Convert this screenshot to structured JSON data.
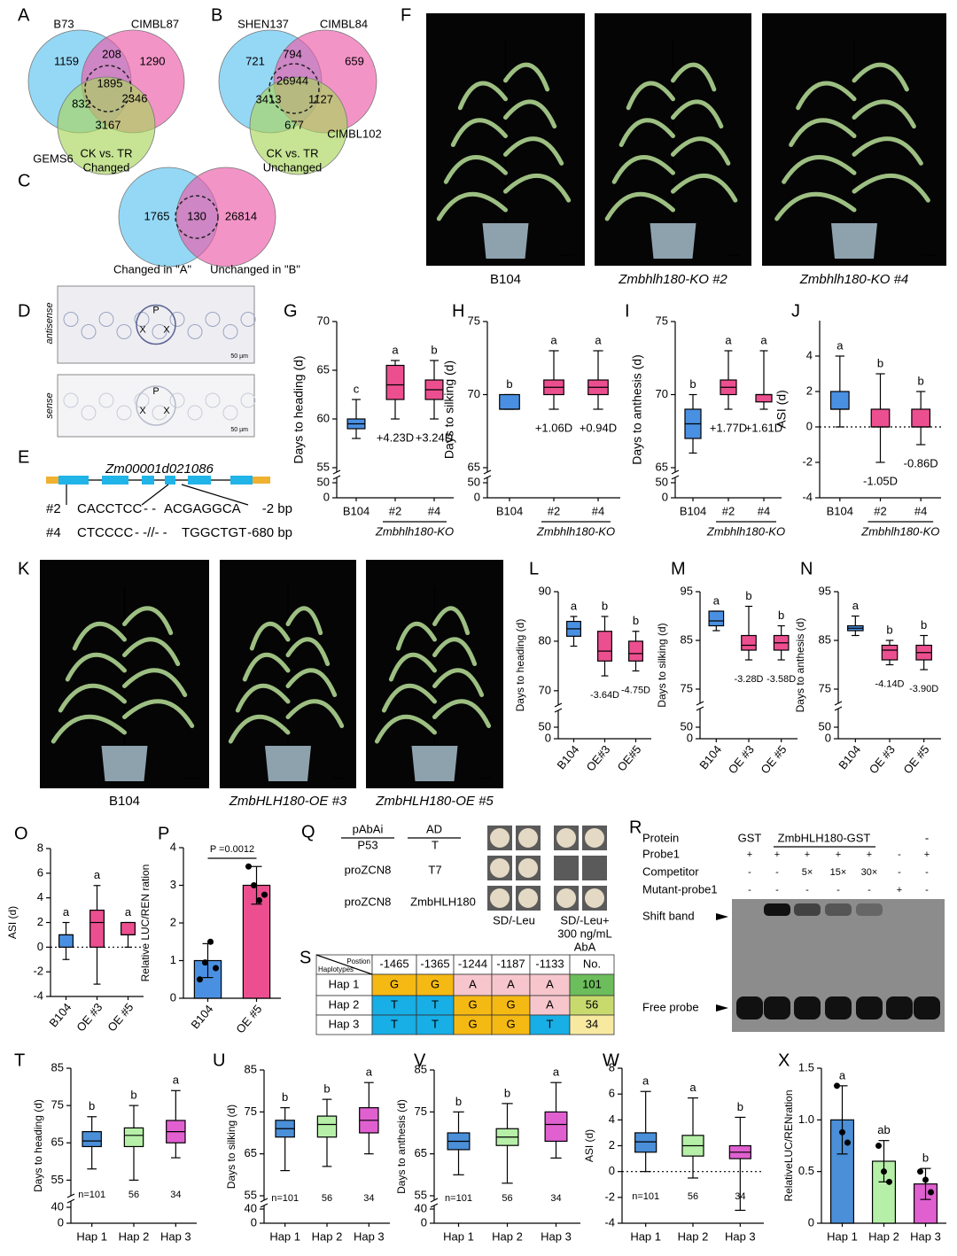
{
  "venns": [
    {
      "label": "A",
      "sets": [
        "B73",
        "CIMBL87",
        "GEMS6"
      ],
      "numbers": [
        "1159",
        "208",
        "1290",
        "832",
        "1895",
        "2346",
        "3167"
      ],
      "caption": [
        "CK vs. TR",
        "Changed"
      ],
      "colors": [
        "#5cc3ef",
        "#ec5aa9",
        "#a9d65c"
      ]
    },
    {
      "label": "B",
      "sets": [
        "SHEN137",
        "CIMBL84",
        "CIMBL102"
      ],
      "numbers": [
        "721",
        "794",
        "659",
        "3413",
        "26944",
        "1127",
        "677"
      ],
      "caption": [
        "CK vs. TR",
        "Unchanged"
      ],
      "colors": [
        "#5cc3ef",
        "#ec5aa9",
        "#a9d65c"
      ]
    },
    {
      "label": "C",
      "sets": [
        "Changed in \"A\"",
        "Unchanged in \"B\""
      ],
      "numbers": [
        "1765",
        "130",
        "26814"
      ],
      "colors": [
        "#5cc3ef",
        "#ec5aa9"
      ]
    }
  ],
  "micrograph": {
    "label": "D",
    "panels": [
      {
        "name": "antisense",
        "marks": [
          "P",
          "X",
          "X"
        ],
        "scale": "50 µm"
      },
      {
        "name": "sense",
        "marks": [
          "P",
          "X",
          "X"
        ],
        "scale": "50 µm"
      }
    ]
  },
  "gene": {
    "label": "E",
    "name": "Zm00001d021086",
    "alleles": [
      {
        "name": "#2",
        "left": "CACCTCC",
        "gap": "- -",
        "right": "ACGAGGCA",
        "change": "-2 bp",
        "color": "#2e9a3a"
      },
      {
        "name": "#4",
        "left": "CTCCCC",
        "gap": "- -//- -",
        "right": "TGGCTGT",
        "change": "-680 bp",
        "color": "#c0278a"
      }
    ]
  },
  "photos": [
    {
      "label": "F",
      "captions": [
        "B104",
        "Zmbhlh180-KO #2",
        "Zmbhlh180-KO #4"
      ]
    },
    {
      "label": "K",
      "captions": [
        "B104",
        "ZmbHLH180-OE #3",
        "ZmbHLH180-OE #5"
      ]
    }
  ],
  "yeast": {
    "label": "Q",
    "headers": [
      "pAbAi",
      "AD"
    ],
    "rows": [
      [
        "P53",
        "T"
      ],
      [
        "proZCN8",
        "T7"
      ],
      [
        "proZCN8",
        "ZmbHLH180"
      ]
    ],
    "media": [
      "SD/-Leu",
      "SD/-Leu+",
      "300 ng/mL",
      "AbA"
    ]
  },
  "emsa": {
    "label": "R",
    "protein": "Protein",
    "proteins": [
      "GST",
      "ZmbHLH180-GST",
      "-"
    ],
    "rows": [
      {
        "name": "Probe1",
        "lanes": [
          "+",
          "+",
          "+",
          "+",
          "+",
          "-",
          "+"
        ]
      },
      {
        "name": "Competitor",
        "lanes": [
          "-",
          "-",
          "5×",
          "15×",
          "30×",
          "-",
          "-"
        ]
      },
      {
        "name": "Mutant-probe1",
        "lanes": [
          "-",
          "-",
          "-",
          "-",
          "-",
          "+",
          "-"
        ]
      }
    ],
    "shift_band": "Shift band",
    "free_probe": "Free probe"
  },
  "table": {
    "label": "S",
    "corner": [
      "Postion",
      "Haplotypes"
    ],
    "columns": [
      "-1465",
      "-1365",
      "-1244",
      "-1187",
      "-1133",
      "No."
    ],
    "rows": [
      {
        "name": "Hap 1",
        "bases": [
          "G",
          "G",
          "A",
          "A",
          "A"
        ],
        "count": 101
      },
      {
        "name": "Hap 2",
        "bases": [
          "T",
          "T",
          "G",
          "G",
          "A"
        ],
        "count": 56
      },
      {
        "name": "Hap 3",
        "bases": [
          "T",
          "T",
          "G",
          "G",
          "T"
        ],
        "count": 34
      }
    ],
    "base_colors": {
      "G": "#f5b914",
      "A": "#f7c6cc",
      "T": "#18aee6"
    },
    "count_colors": [
      "#6cbd5b",
      "#c8da6e",
      "#f7e9a0"
    ]
  },
  "chart_data": [
    {
      "type": "box",
      "label": "G",
      "ylabel": "Days to heading (d)",
      "categories": [
        "B104",
        "#2",
        "#4"
      ],
      "group_label": "Zmbhlh180-KO",
      "ylim": [
        55,
        70
      ],
      "yticks": [
        55,
        60,
        65,
        70
      ],
      "break_ticks": [
        0,
        50
      ],
      "boxes": [
        {
          "color": "#4a90e2",
          "min": 58,
          "q1": 59,
          "median": 59.5,
          "q3": 60,
          "max": 62
        },
        {
          "color": "#ec4f8f",
          "min": 60,
          "q1": 62,
          "median": 63.5,
          "q3": 65.5,
          "max": 66
        },
        {
          "color": "#ec4f8f",
          "min": 60,
          "q1": 62,
          "median": 63,
          "q3": 64,
          "max": 66
        }
      ],
      "letters": [
        "c",
        "a",
        "b"
      ],
      "annotations": [
        null,
        "+4.23D",
        "+3.24D"
      ]
    },
    {
      "type": "box",
      "label": "H",
      "ylabel": "Days to silking (d)",
      "categories": [
        "B104",
        "#2",
        "#4"
      ],
      "group_label": "Zmbhlh180-KO",
      "ylim": [
        65,
        75
      ],
      "yticks": [
        65,
        70,
        75
      ],
      "break_ticks": [
        0,
        50
      ],
      "boxes": [
        {
          "color": "#4a90e2",
          "min": 69,
          "q1": 69,
          "median": 69,
          "q3": 70,
          "max": 70
        },
        {
          "color": "#ec4f8f",
          "min": 69,
          "q1": 70,
          "median": 70.5,
          "q3": 71,
          "max": 73
        },
        {
          "color": "#ec4f8f",
          "min": 69,
          "q1": 70,
          "median": 70.5,
          "q3": 71,
          "max": 73
        }
      ],
      "letters": [
        "b",
        "a",
        "a"
      ],
      "annotations": [
        null,
        "+1.06D",
        "+0.94D"
      ]
    },
    {
      "type": "box",
      "label": "I",
      "ylabel": "Days to anthesis (d)",
      "categories": [
        "B104",
        "#2",
        "#4"
      ],
      "group_label": "Zmbhlh180-KO",
      "ylim": [
        65,
        75
      ],
      "yticks": [
        65,
        70,
        75
      ],
      "break_ticks": [
        0,
        50
      ],
      "boxes": [
        {
          "color": "#4a90e2",
          "min": 66,
          "q1": 67,
          "median": 68,
          "q3": 69,
          "max": 70
        },
        {
          "color": "#ec4f8f",
          "min": 69,
          "q1": 70,
          "median": 70.5,
          "q3": 71,
          "max": 73
        },
        {
          "color": "#ec4f8f",
          "min": 69,
          "q1": 69.5,
          "median": 70,
          "q3": 70,
          "max": 73
        }
      ],
      "letters": [
        "b",
        "a",
        "a"
      ],
      "annotations": [
        null,
        "+1.77D",
        "+1.61D"
      ]
    },
    {
      "type": "box",
      "label": "J",
      "ylabel": "ASI (d)",
      "categories": [
        "B104",
        "#2",
        "#4"
      ],
      "group_label": "Zmbhlh180-KO",
      "ylim": [
        -4,
        6
      ],
      "yticks": [
        -4,
        -2,
        0,
        2,
        4
      ],
      "zero_line": true,
      "boxes": [
        {
          "color": "#4a90e2",
          "min": 0,
          "q1": 1,
          "median": 1,
          "q3": 2,
          "max": 4
        },
        {
          "color": "#ec4f8f",
          "min": -2,
          "q1": 0,
          "median": 0,
          "q3": 1,
          "max": 3
        },
        {
          "color": "#ec4f8f",
          "min": -1,
          "q1": 0,
          "median": 0,
          "q3": 1,
          "max": 2
        }
      ],
      "letters": [
        "a",
        "b",
        "b"
      ],
      "annotations": [
        null,
        "-1.05D",
        "-0.86D"
      ]
    },
    {
      "type": "box",
      "label": "L",
      "ylabel": "Days to heading (d)",
      "categories": [
        "B104",
        "OE#3",
        "OE#5"
      ],
      "rotate_labels": true,
      "ylim": [
        68,
        90
      ],
      "yticks": [
        70,
        80,
        90
      ],
      "break_ticks": [
        0,
        50
      ],
      "boxes": [
        {
          "color": "#4a90e2",
          "min": 79,
          "q1": 81,
          "median": 82.5,
          "q3": 84,
          "max": 85
        },
        {
          "color": "#ec4f8f",
          "min": 73,
          "q1": 76,
          "median": 78,
          "q3": 82,
          "max": 85
        },
        {
          "color": "#ec4f8f",
          "min": 74,
          "q1": 76,
          "median": 77.5,
          "q3": 80,
          "max": 82
        }
      ],
      "letters": [
        "a",
        "b",
        "b"
      ],
      "annotations": [
        null,
        "-3.64D",
        "-4.75D"
      ]
    },
    {
      "type": "box",
      "label": "M",
      "ylabel": "Days to silking (d)",
      "categories": [
        "B104",
        "OE #3",
        "OE #5"
      ],
      "rotate_labels": true,
      "ylim": [
        73,
        95
      ],
      "yticks": [
        75,
        85,
        95
      ],
      "break_ticks": [
        0,
        50
      ],
      "boxes": [
        {
          "color": "#4a90e2",
          "min": 87,
          "q1": 88,
          "median": 89,
          "q3": 91,
          "max": 91
        },
        {
          "color": "#ec4f8f",
          "min": 81,
          "q1": 83,
          "median": 84,
          "q3": 86,
          "max": 92
        },
        {
          "color": "#ec4f8f",
          "min": 81,
          "q1": 83,
          "median": 84.5,
          "q3": 86,
          "max": 88
        }
      ],
      "letters": [
        "a",
        "b",
        "b"
      ],
      "annotations": [
        null,
        "-3.28D",
        "-3.58D"
      ]
    },
    {
      "type": "box",
      "label": "N",
      "ylabel": "Days to anthesis (d)",
      "categories": [
        "B104",
        "OE #3",
        "OE #5"
      ],
      "rotate_labels": true,
      "ylim": [
        73,
        95
      ],
      "yticks": [
        75,
        85,
        95
      ],
      "break_ticks": [
        0,
        50
      ],
      "boxes": [
        {
          "color": "#4a90e2",
          "min": 86,
          "q1": 87,
          "median": 87.5,
          "q3": 88,
          "max": 90
        },
        {
          "color": "#ec4f8f",
          "min": 80,
          "q1": 81,
          "median": 83,
          "q3": 84,
          "max": 85
        },
        {
          "color": "#ec4f8f",
          "min": 79,
          "q1": 81,
          "median": 82.5,
          "q3": 84,
          "max": 86
        }
      ],
      "letters": [
        "a",
        "b",
        "b"
      ],
      "annotations": [
        null,
        "-4.14D",
        "-3.90D"
      ]
    },
    {
      "type": "box",
      "label": "O",
      "ylabel": "ASI (d)",
      "categories": [
        "B104",
        "OE #3",
        "OE #5"
      ],
      "rotate_labels": true,
      "ylim": [
        -4,
        8
      ],
      "yticks": [
        -4,
        -2,
        0,
        2,
        4,
        6,
        8
      ],
      "zero_line": true,
      "boxes": [
        {
          "color": "#4a90e2",
          "min": -1,
          "q1": 0,
          "median": 1,
          "q3": 1,
          "max": 2
        },
        {
          "color": "#ec4f8f",
          "min": -3,
          "q1": 0,
          "median": 2,
          "q3": 3,
          "max": 5
        },
        {
          "color": "#ec4f8f",
          "min": 0,
          "q1": 1,
          "median": 1,
          "q3": 2,
          "max": 2
        }
      ],
      "letters": [
        "a",
        "a",
        "a"
      ]
    },
    {
      "type": "bar",
      "label": "P",
      "ylabel": "Relative LUC/REN ration",
      "categories": [
        "B104",
        "OE #5"
      ],
      "rotate_labels": true,
      "ylim": [
        0,
        4
      ],
      "yticks": [
        0,
        1,
        2,
        3,
        4
      ],
      "values": [
        1.0,
        3.0
      ],
      "errors": [
        0.45,
        0.5
      ],
      "colors": [
        "#4a90e2",
        "#ec4f8f"
      ],
      "points": [
        [
          0.5,
          0.95,
          1.5,
          0.8
        ],
        [
          3.5,
          3.0,
          2.6,
          2.75
        ]
      ],
      "annotation": "P =0.0012"
    },
    {
      "type": "box",
      "label": "T",
      "ylabel": "Days to heading (d)",
      "categories": [
        "Hap 1",
        "Hap 2",
        "Hap 3"
      ],
      "ylim": [
        52,
        85
      ],
      "yticks": [
        55,
        65,
        75,
        85
      ],
      "break_ticks": [
        0,
        40
      ],
      "boxes": [
        {
          "color": "#4a8fd8",
          "min": 58,
          "q1": 64,
          "median": 65.5,
          "q3": 68,
          "max": 72
        },
        {
          "color": "#b6f0a8",
          "min": 55,
          "q1": 64,
          "median": 67,
          "q3": 69,
          "max": 75
        },
        {
          "color": "#e060d0",
          "min": 61,
          "q1": 65,
          "median": 68,
          "q3": 71,
          "max": 79
        }
      ],
      "letters": [
        "b",
        "b",
        "a"
      ],
      "n_labels": [
        "n=101",
        "56",
        "34"
      ]
    },
    {
      "type": "box",
      "label": "U",
      "ylabel": "Days to silking (d)",
      "categories": [
        "Hap 1",
        "Hap 2",
        "Hap 3"
      ],
      "ylim": [
        55,
        85
      ],
      "yticks": [
        55,
        65,
        75,
        85
      ],
      "break_ticks": [
        0,
        40
      ],
      "boxes": [
        {
          "color": "#4a8fd8",
          "min": 61,
          "q1": 69,
          "median": 71,
          "q3": 73,
          "max": 76
        },
        {
          "color": "#b6f0a8",
          "min": 62,
          "q1": 69,
          "median": 72,
          "q3": 74,
          "max": 78
        },
        {
          "color": "#e060d0",
          "min": 65,
          "q1": 70,
          "median": 73,
          "q3": 76,
          "max": 82
        }
      ],
      "letters": [
        "b",
        "b",
        "a"
      ],
      "n_labels": [
        "n=101",
        "56",
        "34"
      ]
    },
    {
      "type": "box",
      "label": "V",
      "ylabel": "Days to anthesis (d)",
      "categories": [
        "Hap 1",
        "Hap 2",
        "Hap 3"
      ],
      "ylim": [
        55,
        85
      ],
      "yticks": [
        55,
        65,
        75,
        85
      ],
      "break_ticks": [
        0,
        40
      ],
      "boxes": [
        {
          "color": "#4a8fd8",
          "min": 60,
          "q1": 66,
          "median": 68,
          "q3": 70,
          "max": 75
        },
        {
          "color": "#b6f0a8",
          "min": 58,
          "q1": 67,
          "median": 69,
          "q3": 71,
          "max": 77
        },
        {
          "color": "#e060d0",
          "min": 64,
          "q1": 68,
          "median": 72,
          "q3": 75,
          "max": 82
        }
      ],
      "letters": [
        "b",
        "b",
        "a"
      ],
      "n_labels": [
        "n=101",
        "56",
        "34"
      ]
    },
    {
      "type": "box",
      "label": "W",
      "ylabel": "ASI (d)",
      "categories": [
        "Hap 1",
        "Hap 2",
        "Hap 3"
      ],
      "ylim": [
        -4,
        8
      ],
      "yticks": [
        -4,
        -2,
        0,
        2,
        4,
        6,
        8
      ],
      "zero_line": true,
      "boxes": [
        {
          "color": "#4a8fd8",
          "min": 0,
          "q1": 1.5,
          "median": 2.3,
          "q3": 3,
          "max": 6.2
        },
        {
          "color": "#b6f0a8",
          "min": -0.5,
          "q1": 1.2,
          "median": 2,
          "q3": 2.8,
          "max": 5.7
        },
        {
          "color": "#e060d0",
          "min": -3,
          "q1": 1,
          "median": 1.5,
          "q3": 2,
          "max": 4.2
        }
      ],
      "letters": [
        "a",
        "a",
        "b"
      ],
      "n_labels": [
        "n=101",
        "56",
        "34"
      ]
    },
    {
      "type": "bar",
      "label": "X",
      "ylabel": "RelativeLUC/RENration",
      "categories": [
        "Hap 1",
        "Hap 2",
        "Hap 3"
      ],
      "ylim": [
        0,
        1.5
      ],
      "yticks": [
        0,
        0.5,
        {
          "value": 1,
          "label": "1.0"
        },
        1.5
      ],
      "values": [
        1.0,
        0.6,
        0.38
      ],
      "errors": [
        0.33,
        0.2,
        0.15
      ],
      "colors": [
        "#4a8fd8",
        "#b6f0a8",
        "#e060d0"
      ],
      "points": [
        [
          1.33,
          0.88,
          0.78
        ],
        [
          0.75,
          0.5,
          0.4
        ],
        [
          0.5,
          0.42,
          0.3
        ]
      ],
      "letters": [
        "a",
        "ab",
        "b"
      ]
    }
  ]
}
